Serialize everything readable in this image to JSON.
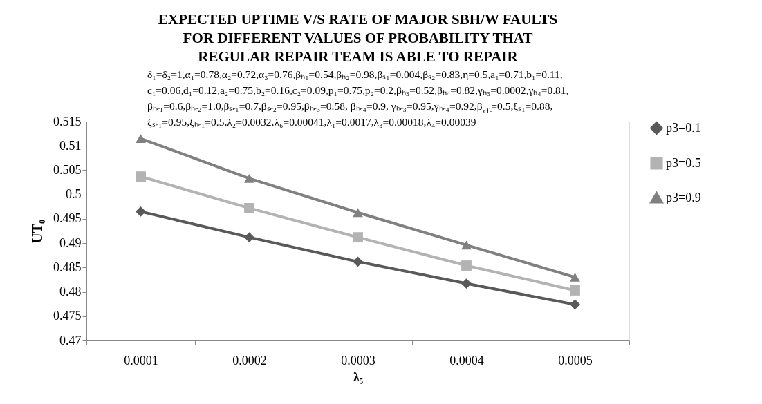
{
  "chart_data": {
    "type": "line",
    "title": [
      "EXPECTED UPTIME V/S RATE OF MAJOR SBH/W FAULTS",
      "FOR DIFFERENT VALUES OF PROBABILITY THAT",
      "REGULAR REPAIR TEAM IS ABLE TO REPAIR"
    ],
    "annotations": [
      "δ₁=δ₂=1,α₁=0.78,α₂=0.72,α₃=0.76,βₕ₁=0.54,βₕ₂=0.98,βₛ₁=0.004,βₛ₂=0.83,η=0.5,a₁=0.71,b₁=0.11,",
      "c₁=0.06,d₁=0.12,a₂=0.75,b₂=0.16,c₂=0.09,p₁=0.75,p₂=0.2,βₕ₃=0.52,βₕ₄=0.82,γₕ₃=0.0002,γₕ₄=0.81,",
      "βₕₑ₁=0.6,βₕₑ₂=1.0,βₛₑ₁=0.7,βₛₑ₂=0.95,βₕₑ₃=0.58, βₕₑ₄=0.9, γₕₑ₃=0.95,γₕₑ₄=0.92,β$_{cfe}$=0.5,ξₛ₁=0.88,",
      "ξₛₑ₁=0.95,ξₕₑ₁=0.5,λ₂=0.0032,λ₆=0.00041,λ₁=0.0017,λ₃=0.00018,λ₄=0.00039"
    ],
    "xlabel": "λ₅",
    "ylabel": "UT₀",
    "categories": [
      "0.0001",
      "0.0002",
      "0.0003",
      "0.0004",
      "0.0005"
    ],
    "series": [
      {
        "name": "p3=0.1",
        "color": "#595959",
        "marker": "diamond",
        "values": [
          0.4965,
          0.4912,
          0.4862,
          0.4817,
          0.4774
        ]
      },
      {
        "name": "p3=0.5",
        "color": "#b3b3b3",
        "marker": "square",
        "values": [
          0.5037,
          0.4972,
          0.4912,
          0.4854,
          0.4803
        ]
      },
      {
        "name": "p3=0.9",
        "color": "#808080",
        "marker": "triangle",
        "values": [
          0.5115,
          0.5033,
          0.4963,
          0.4896,
          0.483
        ]
      }
    ],
    "ylim": [
      0.47,
      0.515
    ],
    "yticks": [
      0.47,
      0.475,
      0.48,
      0.485,
      0.49,
      0.495,
      0.5,
      0.505,
      0.51,
      0.515
    ],
    "grid": false,
    "legend": "right",
    "line_style": "solid"
  }
}
